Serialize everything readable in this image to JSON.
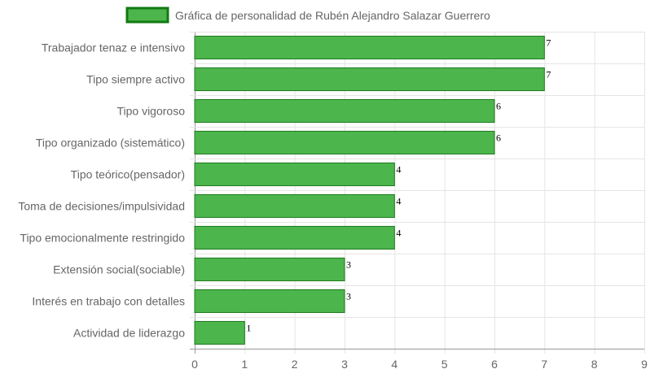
{
  "chart_data": {
    "type": "bar",
    "orientation": "horizontal",
    "legend": {
      "label": "Gráfica de personalidad de Rubén Alejandro Salazar Guerrero",
      "position": "top-center"
    },
    "categories": [
      "Trabajador tenaz e intensivo",
      "Tipo siempre activo",
      "Tipo vigoroso",
      "Tipo organizado (sistemático)",
      "Tipo teórico(pensador)",
      "Toma de decisiones/impulsividad",
      "Tipo emocionalmente restringido",
      "Extensión social(sociable)",
      "Interés en trabajo con detalles",
      "Actividad de liderazgo"
    ],
    "series": [
      {
        "name": "Gráfica de personalidad de Rubén Alejandro Salazar Guerrero",
        "values": [
          7,
          7,
          6,
          6,
          4,
          4,
          4,
          3,
          3,
          1
        ]
      }
    ],
    "xlim": [
      0,
      9
    ],
    "xticks": [
      "0",
      "1",
      "2",
      "3",
      "4",
      "5",
      "6",
      "7",
      "8",
      "9"
    ],
    "grid": true,
    "colors": {
      "bar_fill": "#4cb54c",
      "bar_border": "#1e7a1e",
      "legend_box_fill": "#4cb54c",
      "legend_box_border": "#127a12",
      "grid": "#e5e5e5",
      "axis": "#999999",
      "text": "#666666"
    }
  }
}
